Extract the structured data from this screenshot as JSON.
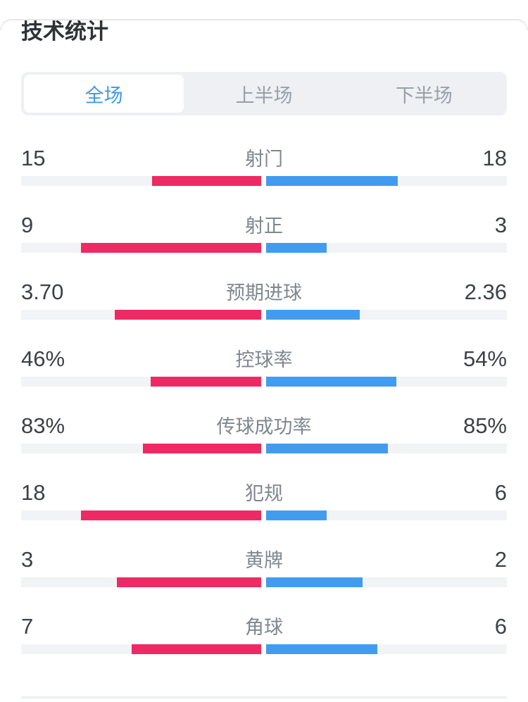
{
  "title": "技术统计",
  "tabs": {
    "items": [
      {
        "label": "全场",
        "active": true
      },
      {
        "label": "上半场",
        "active": false
      },
      {
        "label": "下半场",
        "active": false
      }
    ]
  },
  "colors": {
    "home_bar": "#ed2a64",
    "away_bar": "#419cef",
    "bar_track": "#f2f3f5",
    "tab_active_text": "#3b9ae9",
    "tab_inactive_text": "#989fa9",
    "tab_bar_bg": "#eef0f3"
  },
  "stats": {
    "rows": [
      {
        "label": "射门",
        "home": "15",
        "away": "18"
      },
      {
        "label": "射正",
        "home": "9",
        "away": "3"
      },
      {
        "label": "预期进球",
        "home": "3.70",
        "away": "2.36"
      },
      {
        "label": "控球率",
        "home": "46%",
        "away": "54%"
      },
      {
        "label": "传球成功率",
        "home": "83%",
        "away": "85%"
      },
      {
        "label": "犯规",
        "home": "18",
        "away": "6"
      },
      {
        "label": "黄牌",
        "home": "3",
        "away": "2"
      },
      {
        "label": "角球",
        "home": "7",
        "away": "6"
      }
    ]
  },
  "chart_data": {
    "type": "bar",
    "subtype": "bidirectional-comparison",
    "title": "技术统计",
    "categories": [
      "射门",
      "射正",
      "预期进球",
      "控球率",
      "传球成功率",
      "犯规",
      "黄牌",
      "角球"
    ],
    "series": [
      {
        "name": "left (red)",
        "color": "#ed2a64",
        "values": [
          15,
          9,
          3.7,
          46,
          83,
          18,
          3,
          7
        ]
      },
      {
        "name": "right (blue)",
        "color": "#419cef",
        "values": [
          18,
          3,
          2.36,
          54,
          85,
          6,
          2,
          6
        ]
      }
    ],
    "value_labels": [
      [
        "15",
        "18"
      ],
      [
        "9",
        "3"
      ],
      [
        "3.70",
        "2.36"
      ],
      [
        "46%",
        "54%"
      ],
      [
        "83%",
        "85%"
      ],
      [
        "18",
        "6"
      ],
      [
        "3",
        "2"
      ],
      [
        "7",
        "6"
      ]
    ],
    "layout": "bars anchored at center; each bar length = value / (left+right) of half-track width; left series extends leftward in red, right series rightward in blue",
    "legend_position": "none",
    "grid": false
  }
}
